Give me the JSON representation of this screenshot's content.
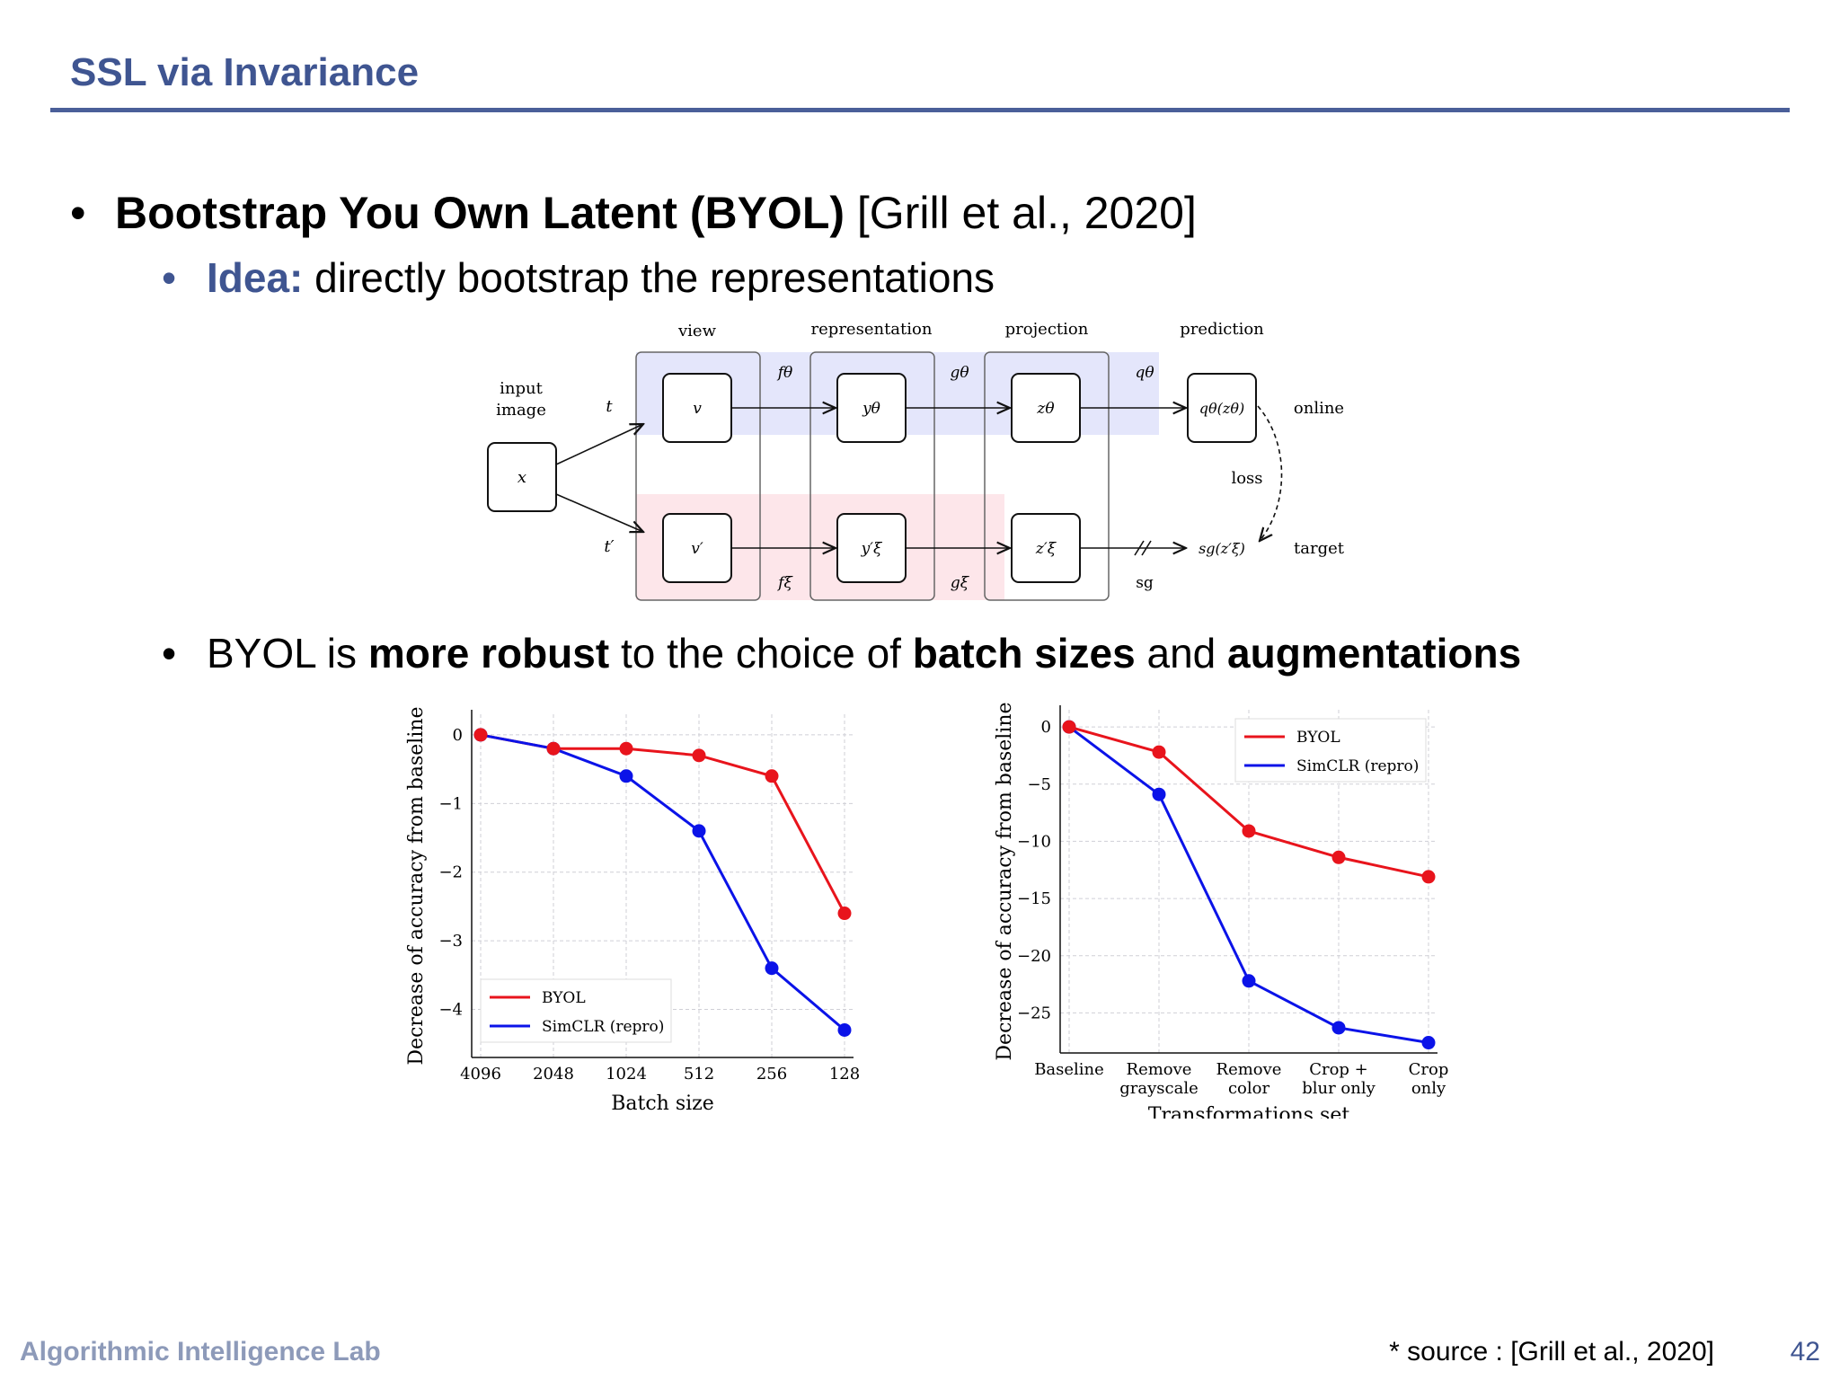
{
  "slide": {
    "title": "SSL via Invariance",
    "bullet1": {
      "bold": "Bootstrap You Own Latent (BYOL)",
      "cite": " [Grill et al., 2020]"
    },
    "bullet2": {
      "label": "Idea:",
      "text": " directly bootstrap the representations"
    },
    "bullet3": {
      "t1": "BYOL is ",
      "b1": "more robust",
      "t2": " to the choice of ",
      "b2": "batch sizes",
      "t3": " and ",
      "b3": "augmentations"
    },
    "footer": {
      "lab": "Algorithmic Intelligence Lab",
      "source": "* source : [Grill et al., 2020]",
      "page": "42"
    }
  },
  "diagram": {
    "headers": [
      "view",
      "representation",
      "projection",
      "prediction"
    ],
    "input_label": [
      "input",
      "image"
    ],
    "x": "x",
    "t": "t",
    "t_prime": "t′",
    "online_nodes": [
      "v",
      "yθ",
      "zθ",
      "qθ(zθ)"
    ],
    "target_nodes": [
      "v′",
      "y′ξ",
      "z′ξ",
      "sg(z′ξ)"
    ],
    "online_fns": [
      "fθ",
      "gθ",
      "qθ"
    ],
    "target_fns": [
      "fξ",
      "gξ",
      "sg"
    ],
    "online": "online",
    "target": "target",
    "loss": "loss",
    "colors": {
      "online_band": "#e4e6fb",
      "target_band": "#fde6ea"
    }
  },
  "chart_data": [
    {
      "type": "line",
      "categories": [
        "4096",
        "2048",
        "1024",
        "512",
        "256",
        "128"
      ],
      "xlabel": "Batch size",
      "ylabel": "Decrease of accuracy from baseline",
      "ylim": [
        -4.7,
        0.3
      ],
      "yticks": [
        0,
        -1,
        -2,
        -3,
        -4
      ],
      "ytick_labels": [
        "0",
        "−1",
        "−2",
        "−3",
        "−4"
      ],
      "grid": true,
      "legend": "bottom-left",
      "series": [
        {
          "name": "BYOL",
          "color": "#e8141c",
          "values": [
            0,
            -0.2,
            -0.2,
            -0.3,
            -0.6,
            -2.6
          ]
        },
        {
          "name": "SimCLR (repro)",
          "color": "#0b13e8",
          "values": [
            0,
            -0.2,
            -0.6,
            -1.4,
            -3.4,
            -4.3
          ]
        }
      ]
    },
    {
      "type": "line",
      "categories": [
        "Baseline",
        "Remove\ngrayscale",
        "Remove\ncolor",
        "Crop +\nblur only",
        "Crop\nonly"
      ],
      "xlabel": "Transformations set",
      "ylabel": "Decrease of accuracy from baseline",
      "ylim": [
        -28.5,
        1.5
      ],
      "yticks": [
        0,
        -5,
        -10,
        -15,
        -20,
        -25
      ],
      "ytick_labels": [
        "0",
        "−5",
        "−10",
        "−15",
        "−20",
        "−25"
      ],
      "grid": true,
      "legend": "top-right",
      "series": [
        {
          "name": "BYOL",
          "color": "#e8141c",
          "values": [
            0,
            -2.2,
            -9.1,
            -11.4,
            -13.1
          ]
        },
        {
          "name": "SimCLR (repro)",
          "color": "#0b13e8",
          "values": [
            0,
            -5.9,
            -22.2,
            -26.3,
            -27.6
          ]
        }
      ]
    }
  ]
}
